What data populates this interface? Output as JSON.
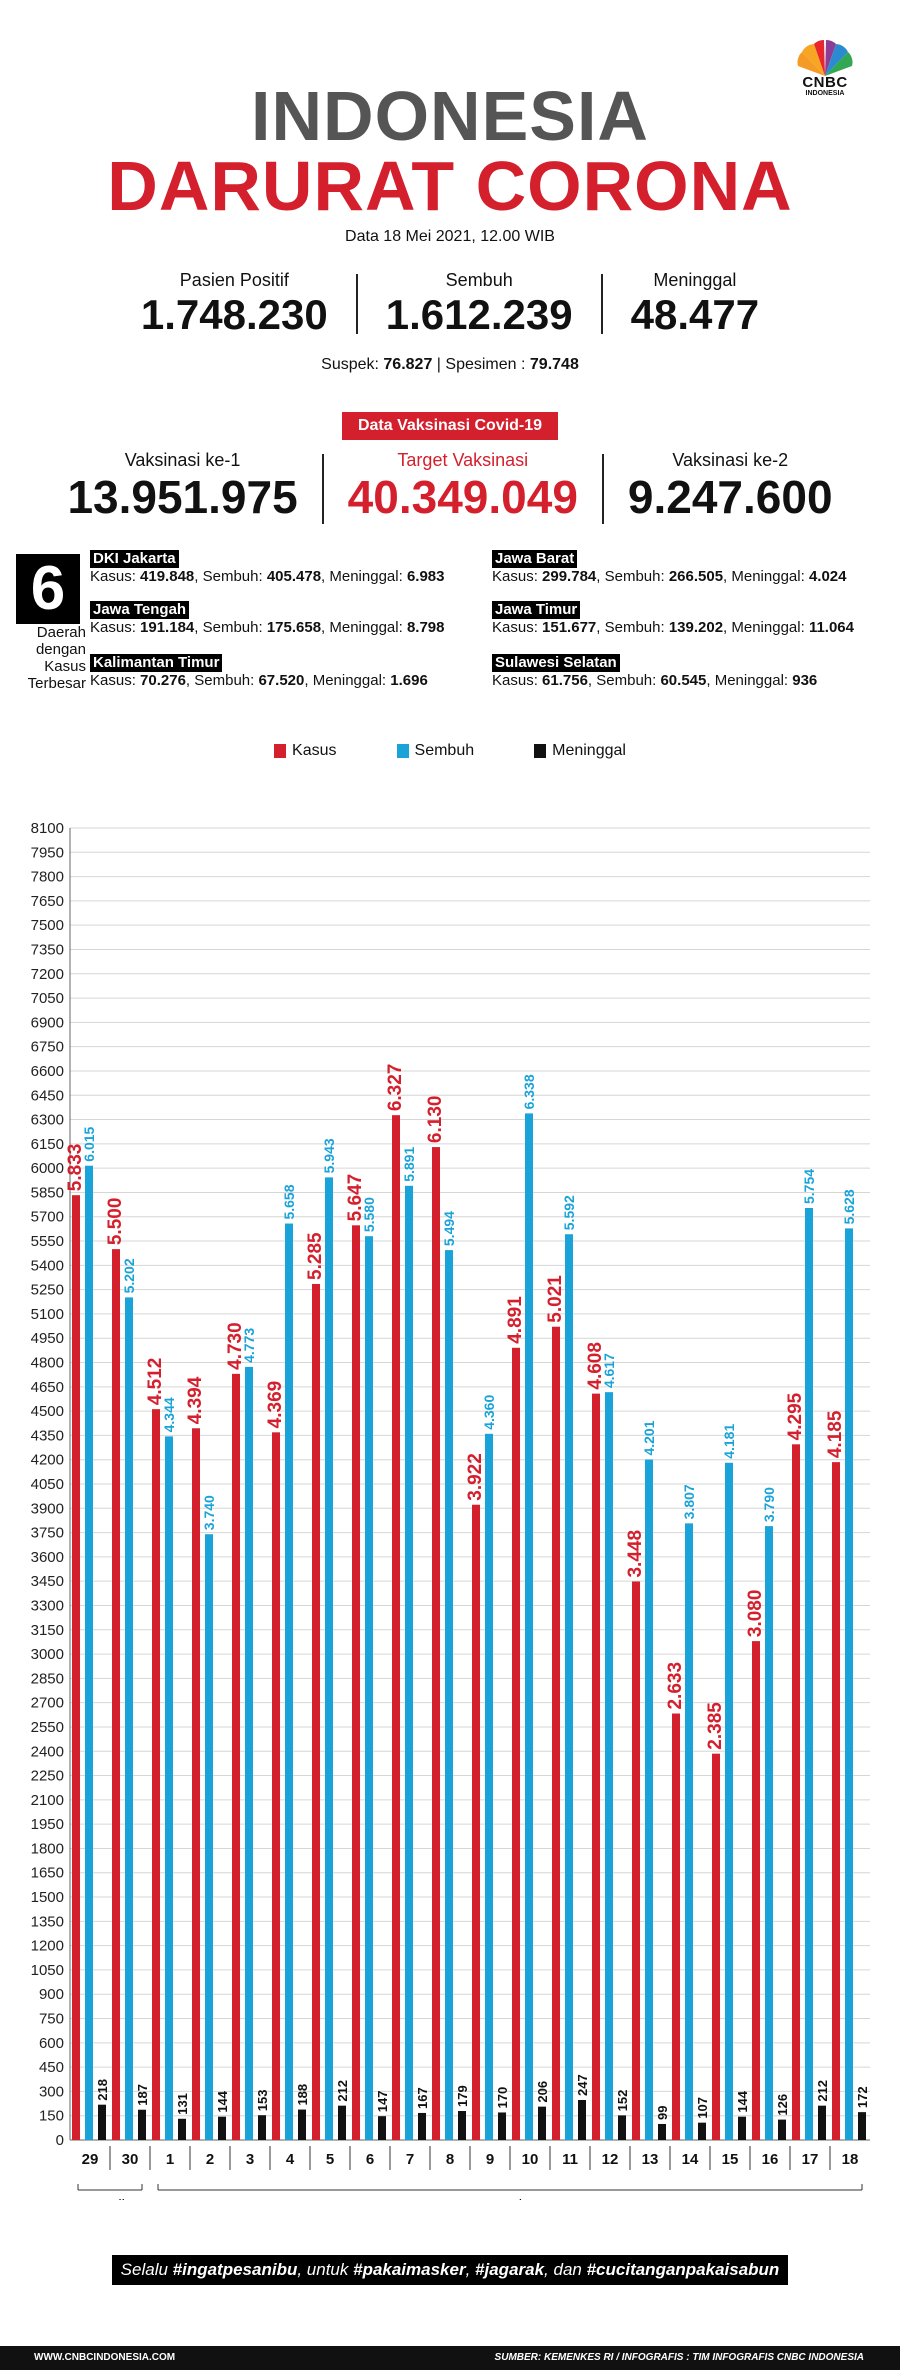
{
  "header": {
    "logo_text": "CNBC",
    "logo_sub": "INDONESIA",
    "title_line1": "INDONESIA",
    "title_line2": "DARURAT CORONA",
    "date": "Data 18 Mei 2021, 12.00 WIB"
  },
  "stats": {
    "positif_label": "Pasien Positif",
    "positif_value": "1.748.230",
    "sembuh_label": "Sembuh",
    "sembuh_value": "1.612.239",
    "meninggal_label": "Meninggal",
    "meninggal_value": "48.477",
    "suspek_label": "Suspek:",
    "suspek_value": "76.827",
    "spesimen_label": "Spesimen :",
    "spesimen_value": "79.748"
  },
  "vaksin": {
    "badge": "Data Vaksinasi Covid-19",
    "ke1_label": "Vaksinasi ke-1",
    "ke1_value": "13.951.975",
    "target_label": "Target Vaksinasi",
    "target_value": "40.349.049",
    "ke2_label": "Vaksinasi ke-2",
    "ke2_value": "9.247.600"
  },
  "regions": {
    "count": "6",
    "caption": [
      "Daerah",
      "dengan",
      "Kasus",
      "Terbesar"
    ],
    "items": [
      {
        "name": "DKI Jakarta",
        "kasus": "419.848",
        "sembuh": "405.478",
        "meninggal": "6.983"
      },
      {
        "name": "Jawa Barat",
        "kasus": "299.784",
        "sembuh": "266.505",
        "meninggal": "4.024"
      },
      {
        "name": "Jawa Tengah",
        "kasus": "191.184",
        "sembuh": "175.658",
        "meninggal": "8.798"
      },
      {
        "name": "Jawa Timur",
        "kasus": "151.677",
        "sembuh": "139.202",
        "meninggal": "11.064"
      },
      {
        "name": "Kalimantan Timur",
        "kasus": "70.276",
        "sembuh": "67.520",
        "meninggal": "1.696"
      },
      {
        "name": "Sulawesi Selatan",
        "kasus": "61.756",
        "sembuh": "60.545",
        "meninggal": "936"
      }
    ],
    "lbl_kasus": "Kasus: ",
    "lbl_sembuh": ", Sembuh: ",
    "lbl_meninggal": ", Meninggal: "
  },
  "chart_data": {
    "type": "bar",
    "categories": [
      "29",
      "30",
      "1",
      "2",
      "3",
      "4",
      "5",
      "6",
      "7",
      "8",
      "9",
      "10",
      "11",
      "12",
      "13",
      "14",
      "15",
      "16",
      "17",
      "18"
    ],
    "groups": [
      {
        "label": "April",
        "from": 0,
        "to": 1
      },
      {
        "label": "Mei",
        "from": 2,
        "to": 19
      }
    ],
    "series": [
      {
        "name": "Kasus",
        "color": "#d41f2c",
        "values": [
          5833,
          5500,
          4512,
          4394,
          4730,
          4369,
          5285,
          5647,
          6327,
          6130,
          3922,
          4891,
          5021,
          4608,
          3448,
          2633,
          2385,
          3080,
          4295,
          4185
        ],
        "labels": [
          "5.833",
          "5.500",
          "4.512",
          "4.394",
          "4.730",
          "4.369",
          "5.285",
          "5.647",
          "6.327",
          "6.130",
          "3.922",
          "4.891",
          "5.021",
          "4.608",
          "3.448",
          "2.633",
          "2.385",
          "3.080",
          "4.295",
          "4.185"
        ]
      },
      {
        "name": "Sembuh",
        "color": "#1aa3d9",
        "values": [
          6015,
          5202,
          4344,
          3740,
          4773,
          5658,
          5943,
          5580,
          5891,
          5494,
          4360,
          6338,
          5592,
          4617,
          4201,
          3807,
          4181,
          3790,
          5754,
          5628
        ],
        "labels": [
          "6.015",
          "5.202",
          "4.344",
          "3.740",
          "4.773",
          "5.658",
          "5.943",
          "5.580",
          "5.891",
          "5.494",
          "4.360",
          "6.338",
          "5.592",
          "4.617",
          "4.201",
          "3.807",
          "4.181",
          "3.790",
          "5.754",
          "5.628"
        ]
      },
      {
        "name": "Meninggal",
        "color": "#111111",
        "values": [
          218,
          187,
          131,
          144,
          153,
          188,
          212,
          147,
          167,
          179,
          170,
          206,
          247,
          152,
          99,
          107,
          144,
          126,
          212,
          172
        ],
        "labels": [
          "218",
          "187",
          "131",
          "144",
          "153",
          "188",
          "212",
          "147",
          "167",
          "179",
          "170",
          "206",
          "247",
          "152",
          "99",
          "107",
          "144",
          "126",
          "212",
          "172"
        ]
      }
    ],
    "ylim": [
      0,
      8100
    ],
    "ytick_step": 150,
    "grid": true,
    "legend": "top-center"
  },
  "footer": {
    "msg_pre": "Selalu ",
    "msg_b1": "#ingatpesanibu",
    "msg_mid1": ", untuk ",
    "msg_b2": "#pakaimasker",
    "msg_mid2": ", ",
    "msg_b3": "#jagarak",
    "msg_mid3": ", dan ",
    "msg_b4": "#cucitanganpakaisabun",
    "site": "WWW.CNBCINDONESIA.COM",
    "source": "SUMBER: KEMENKES RI / INFOGRAFIS : TIM INFOGRAFIS CNBC INDONESIA"
  }
}
